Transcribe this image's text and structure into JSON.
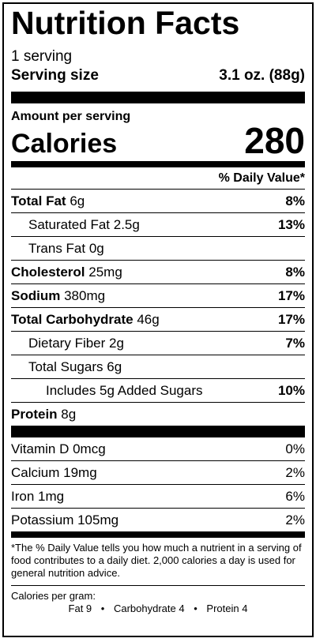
{
  "label": {
    "title": "Nutrition Facts",
    "servings_per_container": "1 serving",
    "serving_size_label": "Serving size",
    "serving_size_value": "3.1 oz. (88g)",
    "amount_per_serving": "Amount per serving",
    "calories_label": "Calories",
    "calories_value": "280",
    "daily_value_header": "% Daily Value*"
  },
  "nutrients": {
    "total_fat": {
      "name": "Total Fat",
      "amount": "6g",
      "dv": "8%"
    },
    "saturated_fat": {
      "name": "Saturated Fat",
      "amount": "2.5g",
      "dv": "13%"
    },
    "trans_fat": {
      "name": "Trans Fat",
      "amount": "0g",
      "dv": ""
    },
    "cholesterol": {
      "name": "Cholesterol",
      "amount": "25mg",
      "dv": "8%"
    },
    "sodium": {
      "name": "Sodium",
      "amount": "380mg",
      "dv": "17%"
    },
    "total_carb": {
      "name": "Total Carbohydrate",
      "amount": "46g",
      "dv": "17%"
    },
    "dietary_fiber": {
      "name": "Dietary Fiber",
      "amount": "2g",
      "dv": "7%"
    },
    "total_sugars": {
      "name": "Total Sugars",
      "amount": "6g",
      "dv": ""
    },
    "added_sugars": {
      "text": "Includes 5g Added Sugars",
      "dv": "10%"
    },
    "protein": {
      "name": "Protein",
      "amount": "8g"
    }
  },
  "vitamins": {
    "vitamin_d": {
      "text": "Vitamin D 0mcg",
      "dv": "0%"
    },
    "calcium": {
      "text": "Calcium 19mg",
      "dv": "2%"
    },
    "iron": {
      "text": "Iron 1mg",
      "dv": "6%"
    },
    "potassium": {
      "text": "Potassium 105mg",
      "dv": "2%"
    }
  },
  "footnote": "*The % Daily Value tells you how much a nutrient in a serving of food contributes to a daily diet. 2,000 calories a day is used for general nutrition advice.",
  "calories_per_gram": {
    "title": "Calories per gram:",
    "fat": "Fat 9",
    "carbohydrate": "Carbohydrate 4",
    "protein": "Protein 4",
    "separator": "•"
  }
}
